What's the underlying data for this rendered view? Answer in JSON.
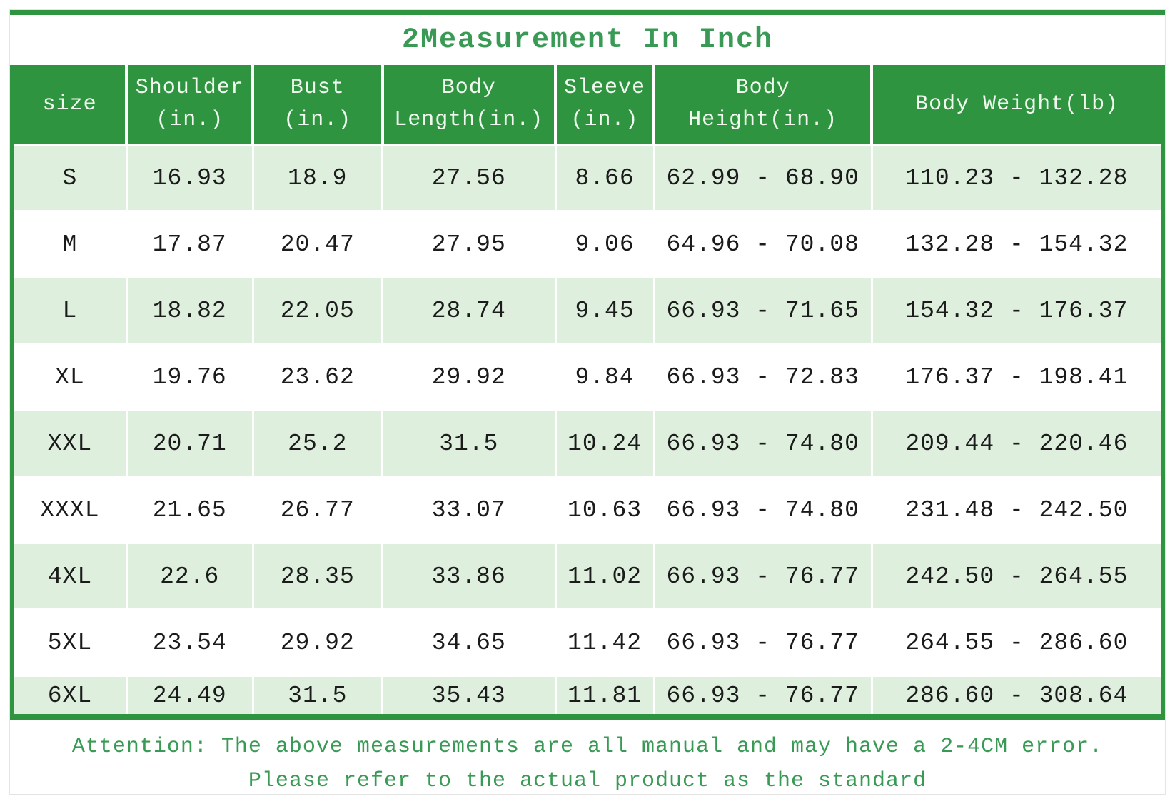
{
  "page": {
    "title": "2Measurement In Inch"
  },
  "footer": {
    "line1": "Attention: The above measurements are all manual and may have a 2-4CM error.",
    "line2": "Please refer to the actual product as the standard"
  },
  "colors": {
    "header_green": "#2e9440",
    "row_light_green": "#def0dd",
    "title_green": "#389a55",
    "body_text": "#1b1b1b",
    "header_text": "#f0f8ee"
  },
  "chart_data": {
    "type": "table",
    "title": "2Measurement In Inch",
    "columns": [
      "size",
      "Shoulder\n(in.)",
      "Bust\n(in.)",
      "Body\nLength(in.)",
      "Sleeve\n(in.)",
      "Body\nHeight(in.)",
      "Body Weight(lb)"
    ],
    "rows": [
      [
        "S",
        "16.93",
        "18.9",
        "27.56",
        "8.66",
        "62.99 - 68.90",
        "110.23 - 132.28"
      ],
      [
        "M",
        "17.87",
        "20.47",
        "27.95",
        "9.06",
        "64.96 - 70.08",
        "132.28 - 154.32"
      ],
      [
        "L",
        "18.82",
        "22.05",
        "28.74",
        "9.45",
        "66.93 - 71.65",
        "154.32 - 176.37"
      ],
      [
        "XL",
        "19.76",
        "23.62",
        "29.92",
        "9.84",
        "66.93 - 72.83",
        "176.37 - 198.41"
      ],
      [
        "XXL",
        "20.71",
        "25.2",
        "31.5",
        "10.24",
        "66.93 - 74.80",
        "209.44 - 220.46"
      ],
      [
        "XXXL",
        "21.65",
        "26.77",
        "33.07",
        "10.63",
        "66.93 - 74.80",
        "231.48 - 242.50"
      ],
      [
        "4XL",
        "22.6",
        "28.35",
        "33.86",
        "11.02",
        "66.93 - 76.77",
        "242.50 - 264.55"
      ],
      [
        "5XL",
        "23.54",
        "29.92",
        "34.65",
        "11.42",
        "66.93 - 76.77",
        "264.55 - 286.60"
      ],
      [
        "6XL",
        "24.49",
        "31.5",
        "35.43",
        "11.81",
        "66.93 - 76.77",
        "286.60 - 308.64"
      ]
    ]
  }
}
